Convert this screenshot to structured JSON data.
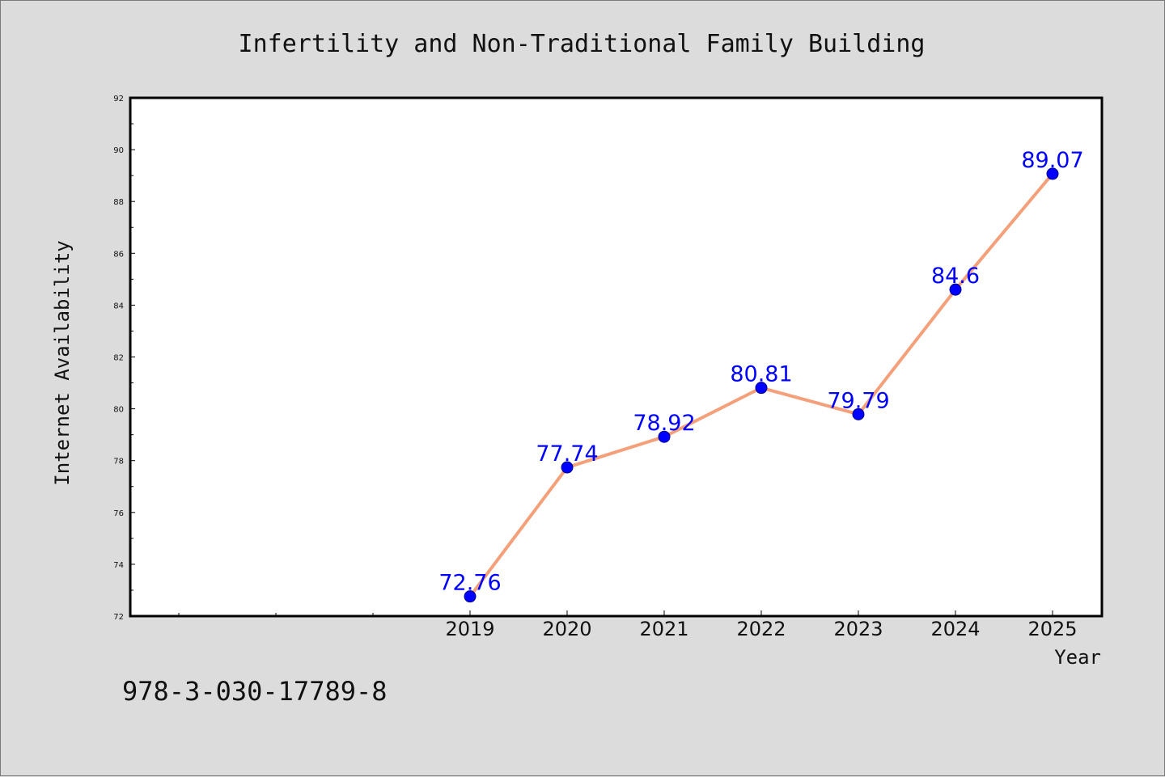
{
  "chart_data": {
    "type": "line",
    "title": "Infertility and Non-Traditional Family Building",
    "xlabel": "Year",
    "ylabel": "Internet Availability",
    "x": [
      "2019",
      "2020",
      "2021",
      "2022",
      "2023",
      "2024",
      "2025"
    ],
    "series": [
      {
        "values": [
          72.76,
          77.74,
          78.92,
          80.81,
          79.79,
          84.6,
          89.07
        ],
        "labels": [
          "72.76",
          "77.74",
          "78.92",
          "80.81",
          "79.79",
          "84.6",
          "89.07"
        ],
        "line_color": "#f4a07a",
        "marker_color": "#0000ff"
      }
    ],
    "ylim": [
      72,
      92
    ],
    "yticks": [
      "72",
      "74",
      "76",
      "78",
      "80",
      "82",
      "84",
      "86",
      "88",
      "90",
      "92"
    ],
    "grid": false,
    "legend": "none"
  },
  "footnote": "978-3-030-17789-8",
  "colors": {
    "background": "#dcdcdc",
    "plot_background": "#ffffff",
    "axis": "#000000",
    "data_label": "#0000ff"
  }
}
